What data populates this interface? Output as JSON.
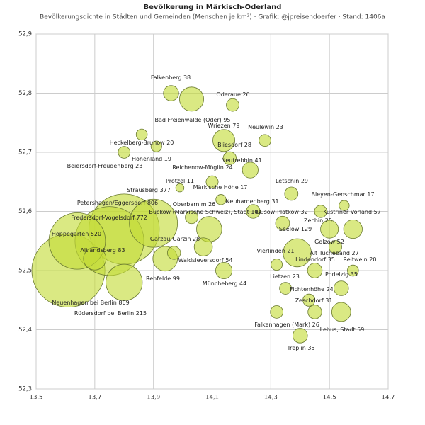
{
  "chart_data": {
    "type": "bubble",
    "title": "Bevölkerung in Märkisch-Oderland",
    "subtitle": "Bevölkerungsdichte in Städten und Gemeinden (Menschen je km²) · Grafik: @jpreisendoerfer · Stand: 1406a",
    "xlim": [
      13.5,
      14.7
    ],
    "ylim": [
      52.3,
      52.9
    ],
    "xticks": [
      {
        "value": 13.5,
        "label": "13,5"
      },
      {
        "value": 13.7,
        "label": "13,7"
      },
      {
        "value": 13.9,
        "label": "13,9"
      },
      {
        "value": 14.1,
        "label": "14,1"
      },
      {
        "value": 14.3,
        "label": "14,3"
      },
      {
        "value": 14.5,
        "label": "14,5"
      },
      {
        "value": 14.7,
        "label": "14,7"
      }
    ],
    "yticks": [
      {
        "value": 52.3,
        "label": "52,3"
      },
      {
        "value": 52.4,
        "label": "52,4"
      },
      {
        "value": 52.5,
        "label": "52,5"
      },
      {
        "value": 52.6,
        "label": "52,6"
      },
      {
        "value": 52.7,
        "label": "52,7"
      },
      {
        "value": 52.8,
        "label": "52,8"
      },
      {
        "value": 52.9,
        "label": "52,9"
      }
    ],
    "grid": true,
    "color": "#c3dc37",
    "labels": [
      "Falkenberg",
      "Oderaue",
      "Bad Freienwalde (Oder)",
      "Neulewin",
      "Wriezen",
      "Heckelberg-Brunow",
      "Bliesdorf",
      "Neutrebbin",
      "Höhenland",
      "Beiersdorf-Freudenberg",
      "Reichenow-Möglin",
      "Prötzel",
      "Märkische Höhe",
      "Letschin",
      "Bleyen-Genschmar",
      "Neuhardenberg",
      "Strausberg",
      "Petershagen/Eggersdorf",
      "Fredersdorf-Vogelsdorf",
      "Hoppegarten",
      "Neuenhagen bei Berlin",
      "Altlandsberg",
      "Rüdersdorf bei Berlin",
      "Rehfelde",
      "Garzau-Garzin",
      "Oberbarnim",
      "Buckow (Märkische Schweiz), Stadt",
      "Waldsieversdorf",
      "Müncheberg",
      "Gusow-Platkow",
      "Seelow",
      "Küstriner Vorland",
      "Zechin",
      "Golzow",
      "Vierlinden",
      "Lindendorf",
      "Alt Tucheband",
      "Reitwein",
      "Podelzig",
      "Lietzen",
      "Fichtenhöhe",
      "Zeschdorf",
      "Lebus, Stadt",
      "Falkenhagen (Mark)",
      "Treplin"
    ],
    "x": [
      13.96,
      14.17,
      14.03,
      14.28,
      14.14,
      13.86,
      14.16,
      14.23,
      13.91,
      13.8,
      14.1,
      13.99,
      14.13,
      14.37,
      14.55,
      14.24,
      13.9,
      13.8,
      13.75,
      13.64,
      13.61,
      13.7,
      13.8,
      13.94,
      13.97,
      14.03,
      14.09,
      14.07,
      14.14,
      14.34,
      14.39,
      14.58,
      14.47,
      14.5,
      14.32,
      14.45,
      14.52,
      14.58,
      14.54,
      14.35,
      14.43,
      14.45,
      14.54,
      14.32,
      14.4
    ],
    "y": [
      52.8,
      52.78,
      52.79,
      52.72,
      52.72,
      52.73,
      52.69,
      52.67,
      52.71,
      52.7,
      52.65,
      52.64,
      52.62,
      52.63,
      52.61,
      52.6,
      52.58,
      52.57,
      52.55,
      52.55,
      52.5,
      52.52,
      52.48,
      52.52,
      52.53,
      52.59,
      52.57,
      52.54,
      52.5,
      52.58,
      52.53,
      52.57,
      52.6,
      52.57,
      52.51,
      52.5,
      52.54,
      52.5,
      52.47,
      52.47,
      52.45,
      52.43,
      52.43,
      52.43,
      52.39
    ],
    "sizes": [
      38,
      26,
      95,
      23,
      79,
      20,
      28,
      41,
      19,
      23,
      24,
      11,
      17,
      29,
      17,
      31,
      377,
      806,
      772,
      520,
      869,
      83,
      215,
      99,
      28,
      26,
      104,
      54,
      44,
      32,
      129,
      57,
      25,
      52,
      21,
      35,
      27,
      20,
      35,
      23,
      24,
      31,
      59,
      26,
      35
    ]
  }
}
